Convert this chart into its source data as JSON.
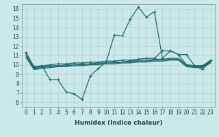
{
  "xlabel": "Humidex (Indice chaleur)",
  "xlim": [
    -0.5,
    23.5
  ],
  "ylim": [
    5.5,
    16.5
  ],
  "xticks": [
    0,
    1,
    2,
    3,
    4,
    5,
    6,
    7,
    8,
    9,
    10,
    11,
    12,
    13,
    14,
    15,
    16,
    17,
    18,
    19,
    20,
    21,
    22,
    23
  ],
  "yticks": [
    6,
    7,
    8,
    9,
    10,
    11,
    12,
    13,
    14,
    15,
    16
  ],
  "bg_color": "#cce8e8",
  "line_color": "#1a6b6b",
  "grid_color": "#aad4d4",
  "series": [
    [
      11.3,
      9.7,
      9.9,
      8.4,
      8.4,
      7.1,
      6.9,
      6.3,
      8.8,
      9.6,
      10.3,
      13.2,
      13.1,
      14.9,
      16.2,
      15.1,
      15.7,
      10.7,
      11.5,
      11.1,
      11.1,
      9.9,
      9.5,
      10.5
    ],
    [
      11.3,
      9.8,
      9.9,
      10.0,
      10.1,
      10.1,
      10.2,
      10.2,
      10.3,
      10.3,
      10.4,
      10.4,
      10.5,
      10.5,
      10.6,
      10.7,
      10.7,
      11.5,
      11.5,
      11.1,
      10.0,
      9.9,
      9.9,
      10.5
    ],
    [
      11.2,
      9.7,
      9.8,
      9.9,
      9.9,
      10.0,
      10.0,
      10.1,
      10.1,
      10.2,
      10.2,
      10.3,
      10.3,
      10.4,
      10.5,
      10.5,
      10.6,
      10.6,
      10.7,
      10.7,
      10.0,
      9.9,
      9.9,
      10.4
    ],
    [
      11.0,
      9.6,
      9.7,
      9.8,
      9.9,
      9.9,
      10.0,
      10.0,
      10.1,
      10.1,
      10.2,
      10.2,
      10.3,
      10.3,
      10.4,
      10.4,
      10.5,
      10.5,
      10.6,
      10.6,
      9.9,
      9.8,
      9.8,
      10.3
    ],
    [
      10.8,
      9.5,
      9.6,
      9.7,
      9.8,
      9.8,
      9.9,
      9.9,
      10.0,
      10.0,
      10.1,
      10.1,
      10.2,
      10.2,
      10.3,
      10.3,
      10.4,
      10.4,
      10.5,
      10.5,
      9.8,
      9.7,
      9.7,
      10.2
    ]
  ],
  "marker_series": [
    0,
    1
  ],
  "markersize": 3,
  "linewidth": 0.9,
  "tick_fontsize": 5.5,
  "xlabel_fontsize": 6.5
}
